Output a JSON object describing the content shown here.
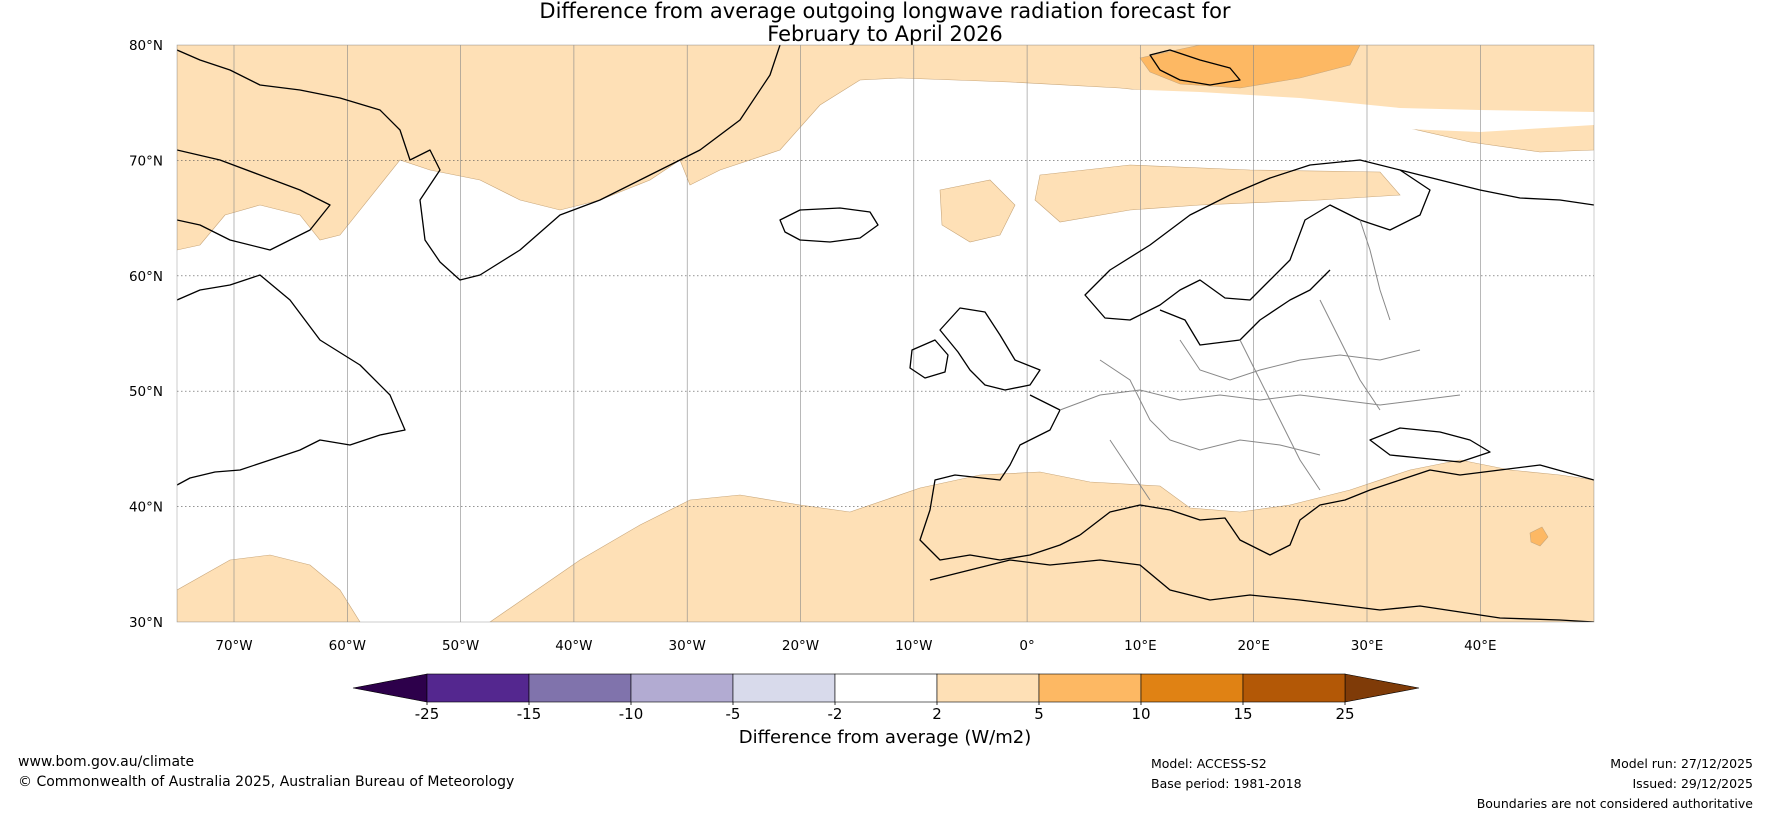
{
  "title": {
    "line1": "Difference from average outgoing longwave radiation forecast for",
    "line2": "February to April 2026"
  },
  "map": {
    "lat_labels": [
      "80°N",
      "70°N",
      "60°N",
      "50°N",
      "40°N",
      "30°N"
    ],
    "lon_labels": [
      "70°W",
      "60°W",
      "50°W",
      "40°W",
      "30°W",
      "20°W",
      "10°W",
      "0°",
      "10°E",
      "20°E",
      "30°E",
      "40°E"
    ]
  },
  "colorbar": {
    "bins": [
      {
        "from": -25,
        "to": -15,
        "color": "#54278f"
      },
      {
        "from": -15,
        "to": -10,
        "color": "#8073ac"
      },
      {
        "from": -10,
        "to": -5,
        "color": "#b2abd2"
      },
      {
        "from": -5,
        "to": -2,
        "color": "#d8daeb"
      },
      {
        "from": -2,
        "to": 2,
        "color": "#ffffff"
      },
      {
        "from": 2,
        "to": 5,
        "color": "#fee0b6"
      },
      {
        "from": 5,
        "to": 10,
        "color": "#fdb863"
      },
      {
        "from": 10,
        "to": 15,
        "color": "#e08214"
      },
      {
        "from": 15,
        "to": 25,
        "color": "#b35806"
      }
    ],
    "under_color": "#2d004b",
    "over_color": "#7f3b08",
    "tick_labels": [
      "-25",
      "-15",
      "-10",
      "-5",
      "-2",
      "2",
      "5",
      "10",
      "15",
      "25"
    ],
    "label": "Difference from average (W/m2)"
  },
  "footer": {
    "website": "www.bom.gov.au/climate",
    "copyright": "© Commonwealth of Australia 2025, Australian Bureau of Meteorology",
    "model": "Model: ACCESS-S2",
    "base_period": "Base period: 1981-2018",
    "model_run": "Model run: 27/12/2025",
    "issued": "Issued: 29/12/2025",
    "disclaimer": "Boundaries are not considered authoritative"
  }
}
